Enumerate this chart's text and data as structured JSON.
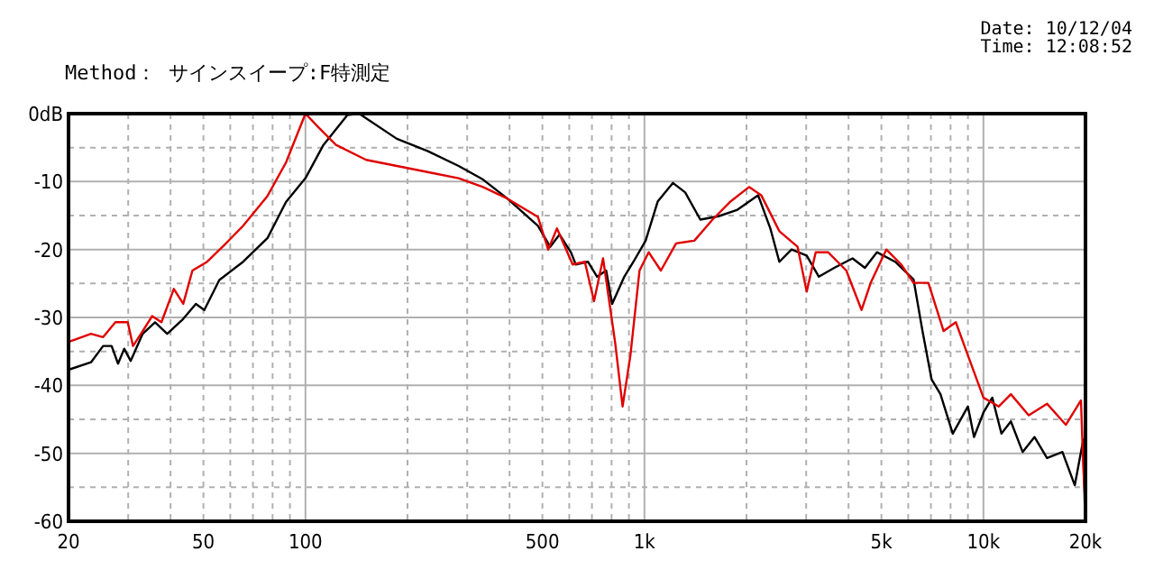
{
  "chart_data": {
    "type": "line",
    "subtitle": "Method： サインスイープ:F特測定",
    "annotations": [
      "Date: 10/12/04",
      "Time: 12:08:52"
    ],
    "log": "x",
    "grid": true,
    "marker": "none",
    "line_style": "solid",
    "xlim": [
      20,
      20000
    ],
    "ylim": [
      -60,
      0
    ],
    "xticks": [
      20,
      {
        "value": 30,
        "label": null
      },
      {
        "value": 40,
        "label": null
      },
      50,
      {
        "value": 60,
        "label": null
      },
      {
        "value": 70,
        "label": null
      },
      {
        "value": 80,
        "label": null
      },
      {
        "value": 90,
        "label": null
      },
      100,
      {
        "value": 200,
        "label": null
      },
      {
        "value": 300,
        "label": null
      },
      {
        "value": 400,
        "label": null
      },
      500,
      {
        "value": 600,
        "label": null
      },
      {
        "value": 700,
        "label": null
      },
      {
        "value": 800,
        "label": null
      },
      {
        "value": 900,
        "label": null
      },
      {
        "value": 1000,
        "label": "1k"
      },
      {
        "value": 2000,
        "label": null
      },
      {
        "value": 3000,
        "label": null
      },
      {
        "value": 4000,
        "label": null
      },
      {
        "value": 5000,
        "label": "5k"
      },
      {
        "value": 6000,
        "label": null
      },
      {
        "value": 7000,
        "label": null
      },
      {
        "value": 8000,
        "label": null
      },
      {
        "value": 9000,
        "label": null
      },
      {
        "value": 10000,
        "label": "10k"
      },
      {
        "value": 20000,
        "label": "20k"
      }
    ],
    "yticks": [
      {
        "value": 0,
        "label": "0dB"
      },
      {
        "value": -5,
        "label": null
      },
      -10,
      {
        "value": -15,
        "label": null
      },
      -20,
      {
        "value": -25,
        "label": null
      },
      -30,
      {
        "value": -35,
        "label": null
      },
      -40,
      {
        "value": -45,
        "label": null
      },
      -50,
      {
        "value": -55,
        "label": null
      },
      -60
    ],
    "series": [
      {
        "color": "#000000",
        "x": [
          20,
          23.3,
          25.3,
          26.8,
          28,
          29.2,
          30.5,
          33.1,
          36,
          39.1,
          43.6,
          47.5,
          50.3,
          55.7,
          65.5,
          77.3,
          87.6,
          100,
          113,
          133,
          144,
          186,
          229,
          283,
          334,
          394,
          485,
          527,
          562,
          608,
          627,
          681,
          725,
          771,
          803,
          872,
          928,
          1008,
          1095,
          1214,
          1319,
          1462,
          1655,
          1873,
          2164,
          2352,
          2500,
          2716,
          3010,
          3270,
          3630,
          4110,
          4470,
          4850,
          5490,
          6220,
          6610,
          7030,
          7470,
          8120,
          9000,
          9380,
          10000,
          10620,
          11300,
          12050,
          13050,
          14150,
          15400,
          17100,
          18600,
          19700,
          19900
        ],
        "values": [
          -37.7,
          -36.6,
          -34.2,
          -34.2,
          -36.8,
          -34.6,
          -36.4,
          -32.4,
          -30.7,
          -32.4,
          -30.2,
          -28,
          -28.9,
          -24.5,
          -21.8,
          -18.3,
          -13,
          -9.5,
          -4.6,
          -0.2,
          0,
          -3.7,
          -5.5,
          -7.7,
          -9.7,
          -12.5,
          -16.5,
          -19.6,
          -17.8,
          -20.5,
          -22.2,
          -21.8,
          -24,
          -23.1,
          -28,
          -24,
          -21.8,
          -18.7,
          -12.9,
          -10.2,
          -11.6,
          -15.6,
          -15.1,
          -14.2,
          -12,
          -16.9,
          -21.8,
          -20,
          -20.9,
          -24,
          -22.7,
          -21.3,
          -22.7,
          -20.4,
          -21.8,
          -24.4,
          -32,
          -39.1,
          -41.3,
          -47.1,
          -43.1,
          -47.6,
          -44,
          -41.8,
          -47.1,
          -45.3,
          -49.8,
          -47.6,
          -50.7,
          -49.8,
          -54.7,
          -48,
          -57.5
        ]
      },
      {
        "color": "#e00000",
        "x": [
          20,
          23.3,
          25.3,
          27.5,
          29.9,
          31,
          33.1,
          35.3,
          37.6,
          40.9,
          43.6,
          46.4,
          51.3,
          58,
          65.5,
          77.3,
          87.6,
          100,
          108.7,
          123,
          151,
          186,
          229,
          283,
          334,
          394,
          485,
          520,
          552,
          614,
          667,
          710,
          755,
          820,
          862,
          909,
          967,
          1029,
          1118,
          1240,
          1403,
          1588,
          1797,
          2035,
          2210,
          2500,
          2830,
          3010,
          3200,
          3480,
          3940,
          4370,
          4650,
          5170,
          5720,
          6220,
          6880,
          7630,
          8290,
          9000,
          10000,
          11100,
          12050,
          13600,
          15400,
          17500,
          19400,
          19700,
          19900
        ],
        "values": [
          -33.6,
          -32.4,
          -32.9,
          -30.7,
          -30.7,
          -34.2,
          -32,
          -29.8,
          -30.7,
          -25.8,
          -28,
          -23.1,
          -21.8,
          -19.2,
          -16.5,
          -12.1,
          -7.2,
          0,
          -1.9,
          -4.6,
          -6.8,
          -7.7,
          -8.6,
          -9.5,
          -10.8,
          -12.5,
          -15.2,
          -20,
          -16.9,
          -22.2,
          -21.8,
          -27.6,
          -21.3,
          -33.8,
          -43.1,
          -35.6,
          -23.1,
          -20.4,
          -23.1,
          -19.1,
          -18.7,
          -15.6,
          -12.9,
          -10.8,
          -12,
          -17.3,
          -19.6,
          -26.2,
          -20.4,
          -20.4,
          -23.1,
          -28.9,
          -24.9,
          -20,
          -22.2,
          -24.9,
          -24.9,
          -32,
          -30.7,
          -35.6,
          -41.8,
          -43.1,
          -41.3,
          -44.4,
          -42.7,
          -45.8,
          -42.2,
          -52,
          -56
        ]
      }
    ]
  }
}
